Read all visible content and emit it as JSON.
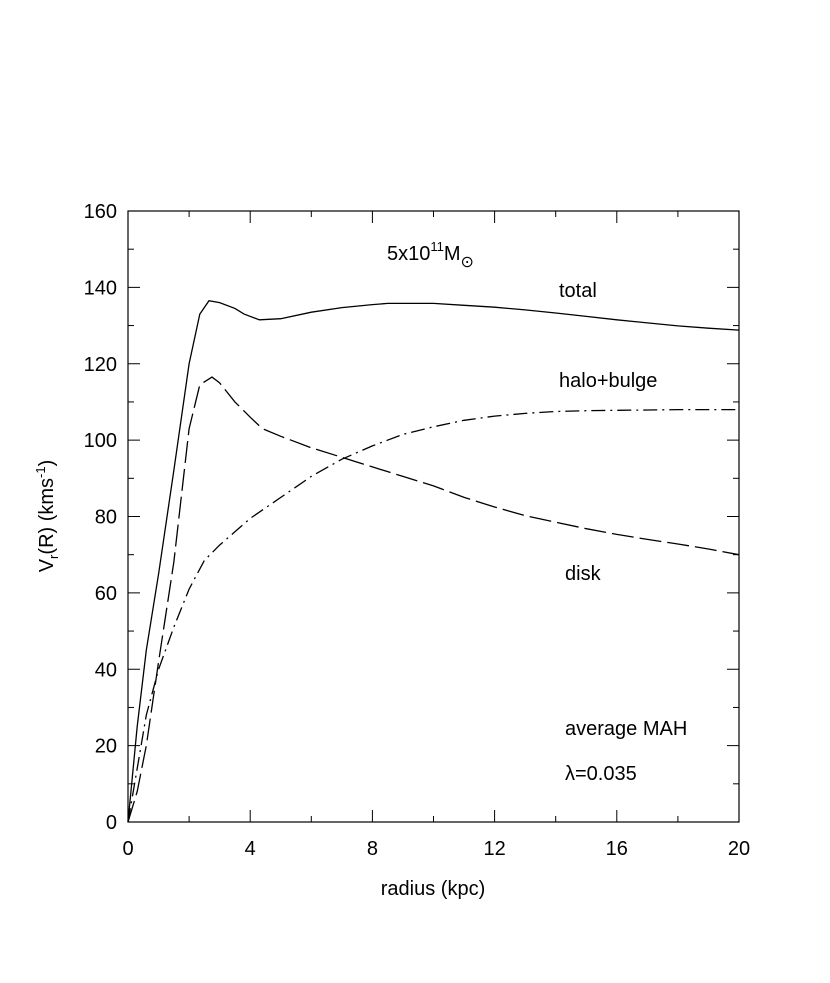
{
  "chart_data": {
    "type": "line",
    "xlabel": "radius (kpc)",
    "ylabel_main": "V",
    "ylabel_sub": "r",
    "ylabel_rest": "(R) (kms",
    "ylabel_sup": "-1",
    "ylabel_end": ")",
    "xlim": [
      0,
      20
    ],
    "ylim": [
      0,
      160
    ],
    "xticks": [
      0,
      4,
      8,
      12,
      16,
      20
    ],
    "yticks": [
      0,
      20,
      40,
      60,
      80,
      100,
      120,
      140,
      160
    ],
    "xticks_minor": [
      0,
      2,
      4,
      6,
      8,
      10,
      12,
      14,
      16,
      18,
      20
    ],
    "yticks_minor": [
      0,
      10,
      20,
      30,
      40,
      50,
      60,
      70,
      80,
      90,
      100,
      110,
      120,
      130,
      140,
      150,
      160
    ],
    "series": [
      {
        "name": "total",
        "style": "solid",
        "x": [
          0,
          0.3,
          0.6,
          1.0,
          1.5,
          2.0,
          2.35,
          2.65,
          3.0,
          3.5,
          3.8,
          4.3,
          5.0,
          6.0,
          7.0,
          8.0,
          8.5,
          10.0,
          11.0,
          12.0,
          13.0,
          14.0,
          15.0,
          16.0,
          17.0,
          18.0,
          19.0,
          20.0
        ],
        "y": [
          0,
          25,
          45,
          65,
          92,
          120,
          133,
          136.5,
          136,
          134.5,
          133,
          131.5,
          131.8,
          133.5,
          134.7,
          135.5,
          135.8,
          135.8,
          135.3,
          134.8,
          134.1,
          133.3,
          132.4,
          131.5,
          130.7,
          129.9,
          129.3,
          128.8
        ]
      },
      {
        "name": "halo+bulge",
        "style": "dashed",
        "x": [
          0,
          0.3,
          0.6,
          1.0,
          1.5,
          2.0,
          2.35,
          2.75,
          3.0,
          3.5,
          4.0,
          4.4,
          5.0,
          6.0,
          7.0,
          8.0,
          9.0,
          10.0,
          11.0,
          12.0,
          13.0,
          14.0,
          15.0,
          16.0,
          17.0,
          18.0,
          19.0,
          20.0
        ],
        "y": [
          0,
          8,
          20,
          42,
          68,
          103,
          114.5,
          116.5,
          115,
          110,
          106,
          103,
          101,
          98,
          95.5,
          93,
          90.5,
          88,
          85,
          82.5,
          80.2,
          78.5,
          76.8,
          75.3,
          74,
          72.8,
          71.5,
          70
        ]
      },
      {
        "name": "disk",
        "style": "dashdot",
        "x": [
          0,
          0.3,
          0.6,
          1.0,
          1.5,
          2.0,
          2.5,
          3.0,
          3.5,
          4.0,
          5.0,
          6.0,
          7.0,
          8.0,
          9.0,
          10.0,
          11.0,
          12.0,
          13.0,
          14.0,
          15.0,
          16.0,
          17.0,
          18.0,
          19.0,
          20.0
        ],
        "y": [
          0,
          14,
          28,
          40,
          51,
          61,
          68.5,
          72.5,
          76,
          79.5,
          85,
          90.5,
          95,
          98.5,
          101.5,
          103.5,
          105.2,
          106.3,
          107,
          107.5,
          107.7,
          107.8,
          107.9,
          108,
          108,
          108
        ]
      }
    ],
    "annotations": {
      "mass_prefix": "5x10",
      "mass_exp": "11",
      "mass_unit": "M",
      "mass_sub": "⊙",
      "total_label": "total",
      "halo_label": "halo+bulge",
      "disk_label": "disk",
      "mah_label": "average MAH",
      "lambda_label": "λ=0.035"
    }
  }
}
